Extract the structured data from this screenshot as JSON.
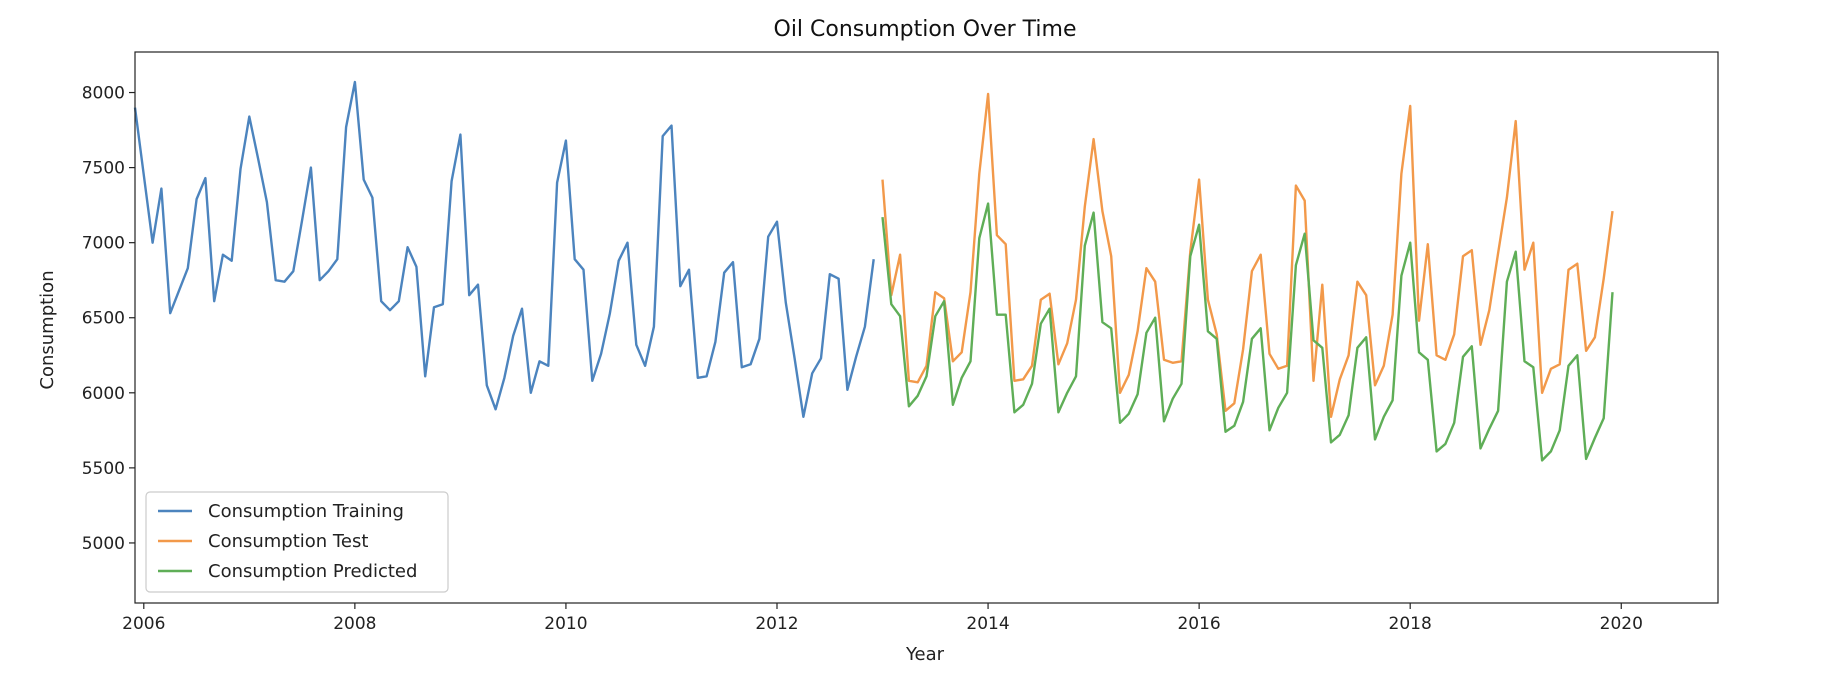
{
  "chart_data": {
    "type": "line",
    "title": "Oil Consumption Over Time",
    "xlabel": "Year",
    "ylabel": "Consumption",
    "xlim": [
      "2005-12",
      "2020-12"
    ],
    "ylim": [
      4600,
      8270
    ],
    "x_ticks": [
      "2006",
      "2008",
      "2010",
      "2012",
      "2014",
      "2016",
      "2018",
      "2020"
    ],
    "y_ticks": [
      5000,
      5500,
      6000,
      6500,
      7000,
      7500,
      8000
    ],
    "grid": false,
    "legend_position": "lower-left",
    "series": [
      {
        "name": "Consumption Training",
        "color": "#4c84be",
        "start": "2005-12",
        "values": [
          7900,
          7450,
          7000,
          7360,
          6530,
          6680,
          6830,
          7290,
          7430,
          6610,
          6920,
          6880,
          7490,
          7840,
          7560,
          7270,
          6750,
          6740,
          6810,
          7150,
          7500,
          6750,
          6810,
          6890,
          7770,
          8070,
          7420,
          7300,
          6610,
          6550,
          6610,
          6970,
          6840,
          6110,
          6570,
          6590,
          7410,
          7720,
          6650,
          6720,
          6050,
          5890,
          6100,
          6380,
          6560,
          6000,
          6210,
          6180,
          7400,
          7680,
          6890,
          6820,
          6080,
          6260,
          6530,
          6880,
          7000,
          6320,
          6180,
          6440,
          7710,
          7780,
          6710,
          6820,
          6100,
          6110,
          6340,
          6800,
          6870,
          6170,
          6190,
          6360,
          7040,
          7140,
          6600,
          6230,
          5840,
          6130,
          6230,
          6790,
          6760,
          6020,
          6240,
          6440,
          6890
        ]
      },
      {
        "name": "Consumption Test",
        "color": "#f2994a",
        "start": "2013-01",
        "values": [
          7420,
          6650,
          6920,
          6080,
          6070,
          6180,
          6670,
          6630,
          6210,
          6270,
          6670,
          7460,
          7990,
          7050,
          6990,
          6080,
          6090,
          6180,
          6620,
          6660,
          6190,
          6330,
          6620,
          7240,
          7690,
          7210,
          6910,
          6000,
          6120,
          6410,
          6830,
          6740,
          6220,
          6200,
          6210,
          6940,
          7420,
          6620,
          6390,
          5880,
          5930,
          6290,
          6810,
          6920,
          6260,
          6160,
          6180,
          7380,
          7280,
          6080,
          6720,
          5840,
          6090,
          6250,
          6740,
          6650,
          6050,
          6180,
          6520,
          7460,
          7910,
          6480,
          6990,
          6250,
          6220,
          6390,
          6910,
          6950,
          6320,
          6550,
          6930,
          7300,
          7810,
          6820,
          7000,
          6000,
          6160,
          6190,
          6820,
          6860,
          6280,
          6370,
          6760,
          7210
        ]
      },
      {
        "name": "Consumption Predicted",
        "color": "#5fae57",
        "start": "2013-01",
        "values": [
          7170,
          6590,
          6510,
          5910,
          5980,
          6110,
          6510,
          6610,
          5920,
          6100,
          6210,
          7030,
          7260,
          6520,
          6520,
          5870,
          5920,
          6060,
          6460,
          6560,
          5870,
          6000,
          6110,
          6980,
          7200,
          6470,
          6430,
          5800,
          5860,
          5990,
          6400,
          6500,
          5810,
          5960,
          6060,
          6910,
          7120,
          6410,
          6360,
          5740,
          5780,
          5940,
          6360,
          6430,
          5750,
          5900,
          6000,
          6850,
          7060,
          6350,
          6300,
          5670,
          5720,
          5850,
          6300,
          6370,
          5690,
          5840,
          5950,
          6780,
          7000,
          6270,
          6220,
          5610,
          5660,
          5800,
          6240,
          6310,
          5630,
          5760,
          5880,
          6740,
          6940,
          6210,
          6170,
          5550,
          5610,
          5750,
          6180,
          6250,
          5560,
          5700,
          5830,
          6670
        ]
      }
    ]
  }
}
